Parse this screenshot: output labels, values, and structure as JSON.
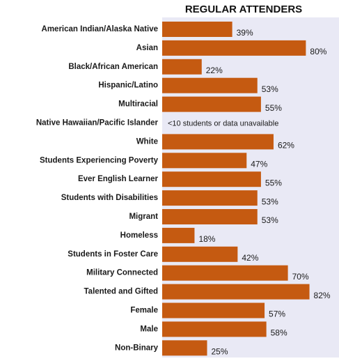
{
  "chart_data": {
    "type": "bar",
    "orientation": "horizontal",
    "title": "REGULAR ATTENDERS",
    "categories": [
      "American Indian/Alaska Native",
      "Asian",
      "Black/African American",
      "Hispanic/Latino",
      "Multiracial",
      "Native Hawaiian/Pacific Islander",
      "White",
      "Students Experiencing Poverty",
      "Ever English Learner",
      "Students with Disabilities",
      "Migrant",
      "Homeless",
      "Students in Foster Care",
      "Military Connected",
      "Talented and Gifted",
      "Female",
      "Male",
      "Non-Binary"
    ],
    "values": [
      39,
      80,
      22,
      53,
      55,
      null,
      62,
      47,
      55,
      53,
      53,
      18,
      42,
      70,
      82,
      57,
      58,
      25
    ],
    "value_labels": [
      "39%",
      "80%",
      "22%",
      "53%",
      "55%",
      "<10 students or data unavailable",
      "62%",
      "47%",
      "55%",
      "53%",
      "53%",
      "18%",
      "42%",
      "70%",
      "82%",
      "57%",
      "58%",
      "25%"
    ],
    "color": "#c55a11",
    "xlim": [
      0,
      100
    ]
  }
}
